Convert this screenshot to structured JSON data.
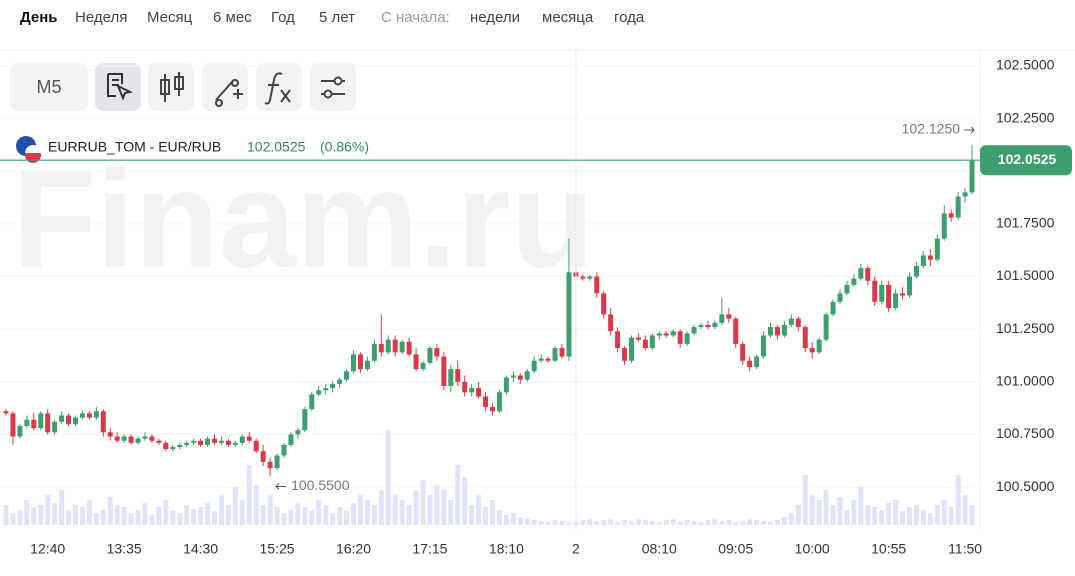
{
  "nav": [
    "День",
    "Неделя",
    "Месяц",
    "6 мес",
    "Год",
    "5 лет",
    "С начала:",
    "недели",
    "месяца",
    "года"
  ],
  "toolbar": {
    "interval": "M5"
  },
  "watermark": "Finam.ru",
  "chart_data": {
    "type": "candlestick",
    "title": "EURRUB_TOM - EUR/RUB",
    "last_price": "102.0525",
    "change": "(0.86%)",
    "up_color": "#3d9e6e",
    "down_color": "#d9394a",
    "volume_color": "#dfe4fb",
    "ylim": [
      100.296,
      102.576
    ],
    "yticks": [
      {
        "value": 100.5,
        "label": "100.5000"
      },
      {
        "value": 100.75,
        "label": "100.7500"
      },
      {
        "value": 101.0,
        "label": "101.0000"
      },
      {
        "value": 101.25,
        "label": "101.2500"
      },
      {
        "value": 101.5,
        "label": "101.5000"
      },
      {
        "value": 101.75,
        "label": "101.7500"
      },
      {
        "value": 102.0,
        "label": "102.0000"
      },
      {
        "value": 102.25,
        "label": "102.2500"
      },
      {
        "value": 102.5,
        "label": "102.5000"
      }
    ],
    "grid": true,
    "current_price": {
      "value": 102.0525,
      "label": "102.0525"
    },
    "high_marker": {
      "value": 102.125,
      "label": "102.1250"
    },
    "low_marker": {
      "value": 100.55,
      "label": "100.5500"
    },
    "vlim": [
      0,
      100
    ],
    "categories": [
      null,
      null,
      null,
      null,
      null,
      null,
      "12:40",
      null,
      null,
      null,
      null,
      null,
      null,
      null,
      null,
      null,
      null,
      "13:35",
      null,
      null,
      null,
      null,
      null,
      null,
      null,
      null,
      null,
      null,
      "14:30",
      null,
      null,
      null,
      null,
      null,
      null,
      null,
      null,
      null,
      null,
      "15:25",
      null,
      null,
      null,
      null,
      null,
      null,
      null,
      null,
      null,
      null,
      "16:20",
      null,
      null,
      null,
      null,
      null,
      null,
      null,
      null,
      null,
      null,
      "17:15",
      null,
      null,
      null,
      null,
      null,
      null,
      null,
      null,
      null,
      null,
      "18:10",
      null,
      null,
      null,
      null,
      null,
      null,
      null,
      null,
      null,
      "2",
      null,
      null,
      null,
      null,
      null,
      null,
      null,
      null,
      null,
      null,
      null,
      "08:10",
      null,
      null,
      null,
      null,
      null,
      null,
      null,
      null,
      null,
      null,
      "09:05",
      null,
      null,
      null,
      null,
      null,
      null,
      null,
      null,
      null,
      null,
      "10:00",
      null,
      null,
      null,
      null,
      null,
      null,
      null,
      null,
      null,
      null,
      "10:55",
      null,
      null,
      null,
      null,
      null,
      null,
      null,
      null,
      null,
      null,
      "11:50",
      null
    ],
    "candles": [
      [
        100.86,
        100.87,
        100.84,
        100.85
      ],
      [
        100.85,
        100.86,
        100.7,
        100.74
      ],
      [
        100.74,
        100.8,
        100.73,
        100.79
      ],
      [
        100.79,
        100.84,
        100.78,
        100.82
      ],
      [
        100.82,
        100.85,
        100.77,
        100.78
      ],
      [
        100.78,
        100.86,
        100.77,
        100.85
      ],
      [
        100.85,
        100.87,
        100.75,
        100.76
      ],
      [
        100.76,
        100.82,
        100.75,
        100.81
      ],
      [
        100.81,
        100.86,
        100.8,
        100.84
      ],
      [
        100.84,
        100.85,
        100.79,
        100.8
      ],
      [
        100.8,
        100.84,
        100.79,
        100.83
      ],
      [
        100.83,
        100.86,
        100.82,
        100.85
      ],
      [
        100.85,
        100.86,
        100.82,
        100.83
      ],
      [
        100.83,
        100.88,
        100.82,
        100.86
      ],
      [
        100.86,
        100.87,
        100.74,
        100.76
      ],
      [
        100.76,
        100.78,
        100.72,
        100.74
      ],
      [
        100.74,
        100.76,
        100.71,
        100.72
      ],
      [
        100.72,
        100.75,
        100.71,
        100.74
      ],
      [
        100.74,
        100.75,
        100.7,
        100.71
      ],
      [
        100.71,
        100.74,
        100.7,
        100.73
      ],
      [
        100.73,
        100.76,
        100.72,
        100.74
      ],
      [
        100.74,
        100.75,
        100.71,
        100.72
      ],
      [
        100.72,
        100.73,
        100.7,
        100.71
      ],
      [
        100.71,
        100.72,
        100.67,
        100.68
      ],
      [
        100.68,
        100.7,
        100.67,
        100.69
      ],
      [
        100.69,
        100.71,
        100.68,
        100.7
      ],
      [
        100.7,
        100.72,
        100.69,
        100.71
      ],
      [
        100.71,
        100.73,
        100.7,
        100.72
      ],
      [
        100.72,
        100.73,
        100.69,
        100.7
      ],
      [
        100.7,
        100.74,
        100.69,
        100.73
      ],
      [
        100.73,
        100.75,
        100.7,
        100.71
      ],
      [
        100.71,
        100.74,
        100.7,
        100.72
      ],
      [
        100.72,
        100.73,
        100.69,
        100.7
      ],
      [
        100.7,
        100.72,
        100.69,
        100.71
      ],
      [
        100.71,
        100.75,
        100.7,
        100.74
      ],
      [
        100.74,
        100.76,
        100.71,
        100.72
      ],
      [
        100.72,
        100.73,
        100.66,
        100.67
      ],
      [
        100.67,
        100.7,
        100.6,
        100.62
      ],
      [
        100.62,
        100.64,
        100.55,
        100.59
      ],
      [
        100.59,
        100.66,
        100.58,
        100.65
      ],
      [
        100.65,
        100.71,
        100.64,
        100.7
      ],
      [
        100.7,
        100.76,
        100.69,
        100.75
      ],
      [
        100.75,
        100.78,
        100.73,
        100.77
      ],
      [
        100.77,
        100.88,
        100.76,
        100.87
      ],
      [
        100.87,
        100.95,
        100.86,
        100.94
      ],
      [
        100.94,
        100.98,
        100.93,
        100.96
      ],
      [
        100.96,
        100.99,
        100.94,
        100.97
      ],
      [
        100.97,
        101.0,
        100.95,
        100.99
      ],
      [
        100.99,
        101.02,
        100.97,
        101.01
      ],
      [
        101.01,
        101.06,
        101.0,
        101.05
      ],
      [
        101.05,
        101.15,
        101.04,
        101.13
      ],
      [
        101.13,
        101.14,
        101.04,
        101.06
      ],
      [
        101.06,
        101.12,
        101.05,
        101.1
      ],
      [
        101.1,
        101.2,
        101.09,
        101.18
      ],
      [
        101.18,
        101.32,
        101.12,
        101.14
      ],
      [
        101.14,
        101.22,
        101.13,
        101.2
      ],
      [
        101.2,
        101.22,
        101.12,
        101.14
      ],
      [
        101.14,
        101.2,
        101.13,
        101.19
      ],
      [
        101.19,
        101.21,
        101.12,
        101.13
      ],
      [
        101.13,
        101.16,
        101.05,
        101.06
      ],
      [
        101.06,
        101.1,
        101.05,
        101.09
      ],
      [
        101.09,
        101.17,
        101.08,
        101.16
      ],
      [
        101.16,
        101.18,
        101.1,
        101.12
      ],
      [
        101.12,
        101.14,
        100.96,
        100.98
      ],
      [
        100.98,
        101.08,
        100.95,
        101.06
      ],
      [
        101.06,
        101.1,
        100.98,
        101.0
      ],
      [
        101.0,
        101.03,
        100.93,
        100.95
      ],
      [
        100.95,
        100.99,
        100.93,
        100.97
      ],
      [
        100.97,
        101.0,
        100.92,
        100.93
      ],
      [
        100.93,
        100.95,
        100.86,
        100.88
      ],
      [
        100.88,
        100.9,
        100.84,
        100.86
      ],
      [
        100.86,
        100.96,
        100.85,
        100.95
      ],
      [
        100.95,
        101.03,
        100.94,
        101.02
      ],
      [
        101.02,
        101.05,
        101.0,
        101.03
      ],
      [
        101.03,
        101.04,
        100.99,
        101.01
      ],
      [
        101.01,
        101.06,
        101.0,
        101.05
      ],
      [
        101.05,
        101.12,
        101.04,
        101.1
      ],
      [
        101.1,
        101.13,
        101.09,
        101.11
      ],
      [
        101.11,
        101.12,
        101.09,
        101.1
      ],
      [
        101.1,
        101.17,
        101.09,
        101.16
      ],
      [
        101.16,
        101.18,
        101.11,
        101.12
      ],
      [
        101.12,
        101.68,
        101.1,
        101.52
      ],
      [
        101.52,
        101.55,
        101.49,
        101.5
      ],
      [
        101.5,
        101.51,
        101.48,
        101.49
      ],
      [
        101.49,
        101.51,
        101.48,
        101.5
      ],
      [
        101.5,
        101.52,
        101.4,
        101.42
      ],
      [
        101.42,
        101.43,
        101.3,
        101.32
      ],
      [
        101.32,
        101.35,
        101.22,
        101.24
      ],
      [
        101.24,
        101.26,
        101.14,
        101.16
      ],
      [
        101.16,
        101.17,
        101.08,
        101.1
      ],
      [
        101.1,
        101.22,
        101.09,
        101.21
      ],
      [
        101.21,
        101.23,
        101.19,
        101.2
      ],
      [
        101.2,
        101.22,
        101.15,
        101.16
      ],
      [
        101.16,
        101.23,
        101.15,
        101.22
      ],
      [
        101.22,
        101.24,
        101.2,
        101.23
      ],
      [
        101.23,
        101.24,
        101.21,
        101.22
      ],
      [
        101.22,
        101.25,
        101.21,
        101.24
      ],
      [
        101.24,
        101.25,
        101.16,
        101.18
      ],
      [
        101.18,
        101.24,
        101.17,
        101.23
      ],
      [
        101.23,
        101.27,
        101.22,
        101.26
      ],
      [
        101.26,
        101.28,
        101.25,
        101.27
      ],
      [
        101.27,
        101.29,
        101.25,
        101.26
      ],
      [
        101.26,
        101.29,
        101.25,
        101.28
      ],
      [
        101.28,
        101.4,
        101.27,
        101.32
      ],
      [
        101.32,
        101.35,
        101.28,
        101.3
      ],
      [
        101.3,
        101.31,
        101.16,
        101.18
      ],
      [
        101.18,
        101.19,
        101.08,
        101.1
      ],
      [
        101.1,
        101.12,
        101.05,
        101.07
      ],
      [
        101.07,
        101.13,
        101.06,
        101.12
      ],
      [
        101.12,
        101.24,
        101.11,
        101.22
      ],
      [
        101.22,
        101.28,
        101.21,
        101.26
      ],
      [
        101.26,
        101.27,
        101.2,
        101.22
      ],
      [
        101.22,
        101.29,
        101.21,
        101.27
      ],
      [
        101.27,
        101.32,
        101.26,
        101.3
      ],
      [
        101.3,
        101.31,
        101.24,
        101.26
      ],
      [
        101.26,
        101.27,
        101.14,
        101.16
      ],
      [
        101.16,
        101.19,
        101.11,
        101.14
      ],
      [
        101.14,
        101.21,
        101.13,
        101.2
      ],
      [
        101.2,
        101.33,
        101.19,
        101.32
      ],
      [
        101.32,
        101.39,
        101.31,
        101.38
      ],
      [
        101.38,
        101.44,
        101.37,
        101.42
      ],
      [
        101.42,
        101.48,
        101.41,
        101.46
      ],
      [
        101.46,
        101.51,
        101.45,
        101.49
      ],
      [
        101.49,
        101.56,
        101.48,
        101.54
      ],
      [
        101.54,
        101.55,
        101.46,
        101.48
      ],
      [
        101.48,
        101.5,
        101.36,
        101.38
      ],
      [
        101.38,
        101.48,
        101.37,
        101.46
      ],
      [
        101.46,
        101.48,
        101.33,
        101.35
      ],
      [
        101.35,
        101.44,
        101.34,
        101.42
      ],
      [
        101.42,
        101.45,
        101.39,
        101.41
      ],
      [
        101.41,
        101.52,
        101.4,
        101.5
      ],
      [
        101.5,
        101.57,
        101.49,
        101.55
      ],
      [
        101.55,
        101.62,
        101.54,
        101.6
      ],
      [
        101.6,
        101.63,
        101.55,
        101.58
      ],
      [
        101.58,
        101.7,
        101.57,
        101.68
      ],
      [
        101.68,
        101.84,
        101.67,
        101.8
      ],
      [
        101.8,
        101.82,
        101.76,
        101.78
      ],
      [
        101.78,
        101.9,
        101.77,
        101.88
      ],
      [
        101.88,
        101.92,
        101.85,
        101.9
      ],
      [
        101.9,
        102.125,
        101.89,
        102.0525
      ]
    ],
    "volumes": [
      20,
      12,
      15,
      25,
      18,
      20,
      30,
      22,
      35,
      15,
      20,
      18,
      25,
      12,
      15,
      28,
      20,
      18,
      12,
      15,
      22,
      10,
      18,
      25,
      14,
      12,
      20,
      16,
      18,
      22,
      14,
      30,
      20,
      38,
      25,
      60,
      40,
      20,
      30,
      18,
      12,
      15,
      22,
      18,
      15,
      25,
      20,
      12,
      18,
      14,
      22,
      30,
      25,
      20,
      35,
      95,
      30,
      25,
      20,
      35,
      45,
      30,
      40,
      35,
      25,
      60,
      48,
      20,
      30,
      18,
      25,
      15,
      10,
      12,
      8,
      6,
      5,
      4,
      3,
      5,
      4,
      3,
      4,
      5,
      6,
      4,
      5,
      6,
      3,
      5,
      4,
      6,
      5,
      4,
      3,
      5,
      6,
      4,
      5,
      4,
      3,
      5,
      6,
      4,
      5,
      3,
      4,
      6,
      5,
      4,
      3,
      5,
      8,
      12,
      20,
      50,
      30,
      25,
      35,
      20,
      28,
      15,
      25,
      38,
      20,
      18,
      15,
      22,
      25,
      14,
      18,
      20,
      15,
      12,
      20,
      25,
      18,
      50,
      30,
      20
    ]
  }
}
